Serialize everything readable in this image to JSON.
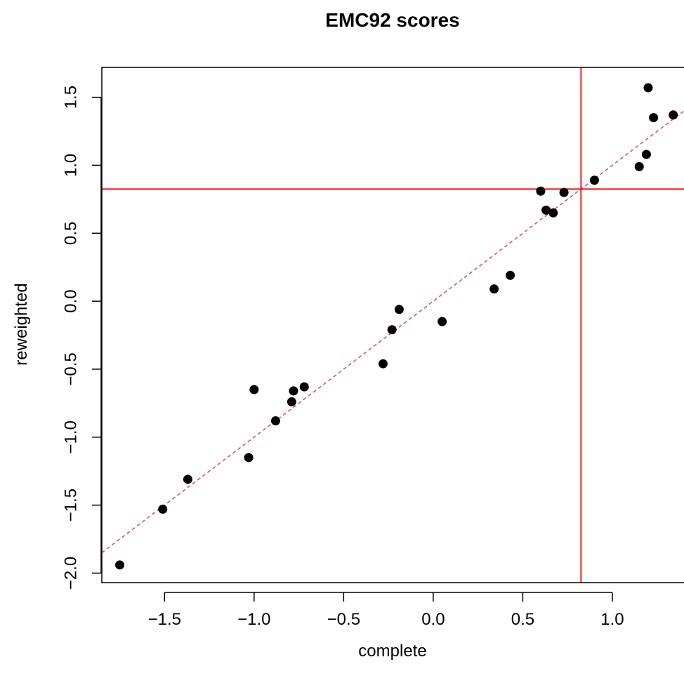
{
  "chart_data": {
    "type": "scatter",
    "title": "EMC92 scores",
    "xlabel": "complete",
    "ylabel": "reweighted",
    "xlim": [
      -1.85,
      1.4
    ],
    "ylim": [
      -2.07,
      1.72
    ],
    "x_ticks": [
      -1.5,
      -1.0,
      -0.5,
      0.0,
      0.5,
      1.0
    ],
    "x_tick_labels": [
      "−1.5",
      "−1.0",
      "−0.5",
      "0.0",
      "0.5",
      "1.0"
    ],
    "y_ticks": [
      -2.0,
      -1.5,
      -1.0,
      -0.5,
      0.0,
      0.5,
      1.0,
      1.5
    ],
    "y_tick_labels": [
      "−2.0",
      "−1.5",
      "−1.0",
      "−0.5",
      "0.0",
      "0.5",
      "1.0",
      "1.5"
    ],
    "grid": false,
    "points": {
      "x": [
        -1.75,
        -1.51,
        -1.37,
        -1.03,
        -1.0,
        -0.88,
        -0.79,
        -0.78,
        -0.72,
        -0.28,
        -0.23,
        -0.19,
        0.05,
        0.34,
        0.43,
        0.6,
        0.63,
        0.67,
        0.73,
        0.9,
        1.15,
        1.19,
        1.2,
        1.23,
        1.34
      ],
      "y": [
        -1.94,
        -1.53,
        -1.31,
        -1.15,
        -0.65,
        -0.88,
        -0.74,
        -0.66,
        -0.63,
        -0.46,
        -0.21,
        -0.06,
        -0.15,
        0.09,
        0.19,
        0.81,
        0.67,
        0.65,
        0.8,
        0.89,
        0.99,
        1.08,
        1.57,
        1.35,
        1.37
      ]
    },
    "point_color": "#000000",
    "reference_lines": {
      "vertical_x": 0.825,
      "horizontal_y": 0.825,
      "color": "#ff0000"
    },
    "diagonal": {
      "slope": 1,
      "intercept": 0,
      "color": "#df536b",
      "style": "dashed"
    }
  }
}
